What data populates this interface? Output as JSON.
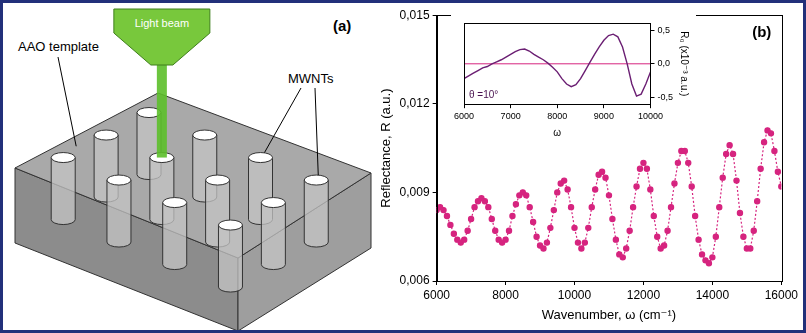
{
  "diagram": {
    "panel_label": "(a)",
    "labels": {
      "template": "AAO template",
      "nanotubes": "MWNTs",
      "beam": "Light beam"
    }
  },
  "chart_data": [
    {
      "type": "line",
      "panel_label": "(b)",
      "x_label": "Wavenumber, ω (cm⁻¹)",
      "y_label": "Reflectance, R (a.u.)",
      "x": [
        6000,
        6100,
        6200,
        6300,
        6400,
        6500,
        6600,
        6700,
        6800,
        6900,
        7000,
        7100,
        7200,
        7300,
        7400,
        7500,
        7600,
        7700,
        7800,
        7900,
        8000,
        8100,
        8200,
        8300,
        8400,
        8500,
        8600,
        8700,
        8800,
        8900,
        9000,
        9100,
        9200,
        9300,
        9400,
        9500,
        9600,
        9700,
        9800,
        9900,
        10000,
        10100,
        10200,
        10300,
        10400,
        10500,
        10600,
        10700,
        10800,
        10900,
        11000,
        11100,
        11200,
        11300,
        11400,
        11500,
        11600,
        11700,
        11800,
        11900,
        12000,
        12100,
        12200,
        12300,
        12400,
        12500,
        12600,
        12700,
        12800,
        12900,
        13000,
        13100,
        13200,
        13300,
        13400,
        13500,
        13600,
        13700,
        13800,
        13900,
        14000,
        14100,
        14200,
        14300,
        14400,
        14500,
        14600,
        14700,
        14800,
        14900,
        15000,
        15100,
        15200,
        15300,
        15400,
        15500,
        15600,
        15700,
        15800,
        15900,
        16000
      ],
      "values": [
        0.0084,
        0.0085,
        0.0084,
        0.0082,
        0.0079,
        0.0076,
        0.0074,
        0.0073,
        0.0074,
        0.0077,
        0.0081,
        0.0085,
        0.0087,
        0.0088,
        0.0087,
        0.0085,
        0.0081,
        0.0077,
        0.0074,
        0.0073,
        0.0074,
        0.0077,
        0.0082,
        0.0086,
        0.0089,
        0.009,
        0.0089,
        0.0085,
        0.008,
        0.0075,
        0.0072,
        0.0071,
        0.0073,
        0.0078,
        0.0084,
        0.009,
        0.0093,
        0.0094,
        0.0091,
        0.0085,
        0.0078,
        0.0073,
        0.0071,
        0.0073,
        0.0078,
        0.0085,
        0.0091,
        0.0096,
        0.0097,
        0.0095,
        0.0089,
        0.0081,
        0.0074,
        0.0069,
        0.0068,
        0.0071,
        0.0077,
        0.0085,
        0.0092,
        0.0098,
        0.01,
        0.0098,
        0.0091,
        0.0082,
        0.0075,
        0.0071,
        0.0072,
        0.0077,
        0.0085,
        0.0093,
        0.01,
        0.0104,
        0.0104,
        0.01,
        0.0092,
        0.0082,
        0.0074,
        0.0069,
        0.0067,
        0.0066,
        0.0068,
        0.0075,
        0.0085,
        0.0095,
        0.0103,
        0.0106,
        0.0103,
        0.0094,
        0.0083,
        0.0075,
        0.0071,
        0.0071,
        0.0077,
        0.0087,
        0.0098,
        0.0107,
        0.0111,
        0.011,
        0.0104,
        0.0097,
        0.0092
      ],
      "color": "#d6247f",
      "marker": "circle",
      "line_style": "dotted",
      "xlim": [
        6000,
        16000
      ],
      "xticks": [
        6000,
        8000,
        10000,
        12000,
        14000,
        16000
      ],
      "ylim": [
        0.006,
        0.015
      ],
      "yticks": [
        {
          "value": 0.006,
          "label": "0,006"
        },
        {
          "value": 0.009,
          "label": "0,009"
        },
        {
          "value": 0.012,
          "label": "0,012"
        },
        {
          "value": 0.015,
          "label": "0,015"
        }
      ],
      "grid": false
    },
    {
      "type": "line",
      "x_label": "ω",
      "y2_label": "R₀ (x10⁻³ a.u.)",
      "annotations": [
        "θ =10°"
      ],
      "x": [
        6000,
        6100,
        6200,
        6300,
        6400,
        6500,
        6600,
        6700,
        6800,
        6900,
        7000,
        7100,
        7200,
        7300,
        7400,
        7500,
        7600,
        7700,
        7800,
        7900,
        8000,
        8100,
        8200,
        8300,
        8400,
        8500,
        8600,
        8700,
        8800,
        8900,
        9000,
        9100,
        9200,
        9300,
        9400,
        9500,
        9600,
        9700,
        9800,
        9900,
        10000
      ],
      "series": [
        {
          "values": [
            -0.22,
            -0.18,
            -0.14,
            -0.1,
            -0.06,
            -0.04,
            0.0,
            0.03,
            0.06,
            0.1,
            0.14,
            0.18,
            0.21,
            0.22,
            0.19,
            0.14,
            0.1,
            0.06,
            0.01,
            -0.05,
            -0.12,
            -0.22,
            -0.3,
            -0.34,
            -0.31,
            -0.22,
            -0.1,
            0.02,
            0.14,
            0.25,
            0.35,
            0.42,
            0.44,
            0.4,
            0.25,
            0.0,
            -0.3,
            -0.48,
            -0.45,
            -0.3,
            -0.12
          ],
          "color": "#6b1f73",
          "axis": "y2",
          "marker": "none",
          "line_style": "solid"
        }
      ],
      "xlim": [
        6000,
        10000
      ],
      "xticks": [
        6000,
        7000,
        8000,
        9000,
        10000
      ],
      "y2lim": [
        -0.6,
        0.6
      ],
      "y2ticks": [
        {
          "value": -0.5,
          "label": "-0,5"
        },
        {
          "value": 0,
          "label": "0,0"
        },
        {
          "value": 0.5,
          "label": "0,5"
        }
      ],
      "reference_line": 0,
      "reference_color": "#d6247f",
      "grid": false
    }
  ]
}
